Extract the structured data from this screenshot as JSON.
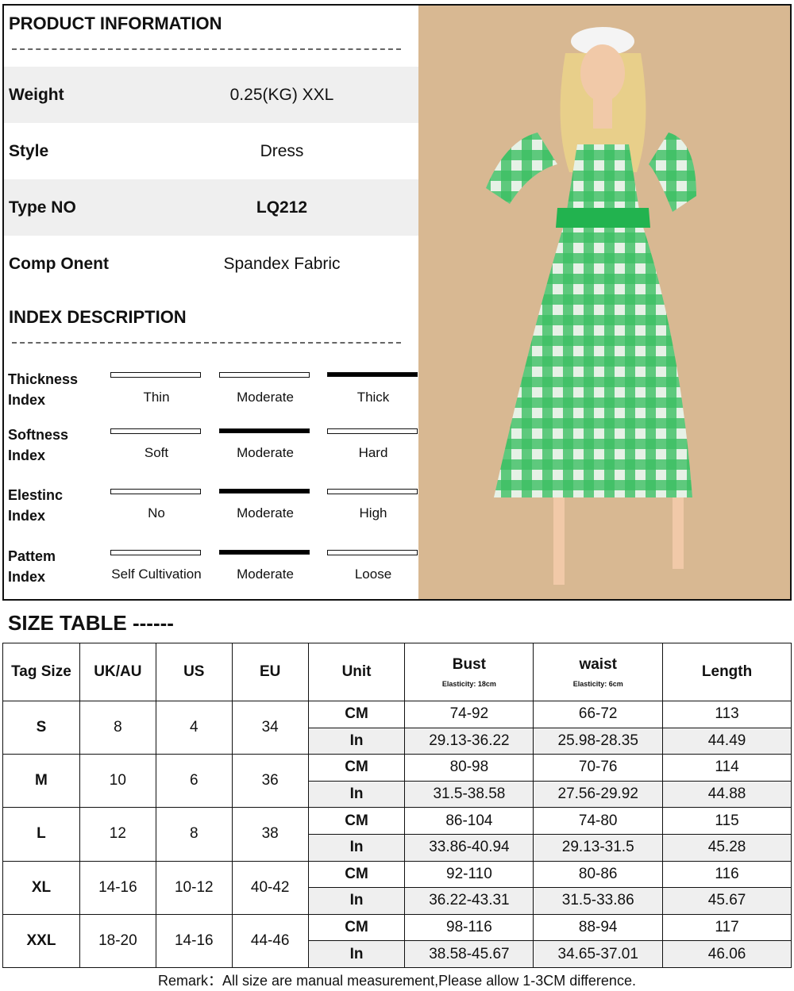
{
  "product": {
    "heading": "PRODUCT INFORMATION",
    "rows": [
      {
        "label": "Weight",
        "value": "0.25(KG)  XXL"
      },
      {
        "label": "Style",
        "value": "Dress"
      },
      {
        "label": "Type NO",
        "value": "LQ212"
      },
      {
        "label": "Comp Onent",
        "value": "Spandex Fabric"
      }
    ]
  },
  "index": {
    "heading": "INDEX DESCRIPTION",
    "rows": [
      {
        "label1": "Thickness",
        "label2": "Index",
        "options": [
          "Thin",
          "Moderate",
          "Thick"
        ],
        "selected": 2
      },
      {
        "label1": "Softness",
        "label2": "Index",
        "options": [
          "Soft",
          "Moderate",
          "Hard"
        ],
        "selected": 1
      },
      {
        "label1": "Elestinc",
        "label2": "Index",
        "options": [
          "No",
          "Moderate",
          "High"
        ],
        "selected": 1
      },
      {
        "label1": "Pattem",
        "label2": "Index",
        "options": [
          "Self Cultivation",
          "Moderate",
          "Loose"
        ],
        "selected": 1
      }
    ]
  },
  "size_table": {
    "title": "SIZE TABLE ------",
    "headers": [
      "Tag Size",
      "UK/AU",
      "US",
      "EU",
      "Unit",
      "Bust",
      "waist",
      "Length"
    ],
    "bust_note": "Elasticity: 18cm",
    "waist_note": "Elasticity: 6cm",
    "units": [
      "CM",
      "In"
    ],
    "rows": [
      {
        "tag": "S",
        "uk": "8",
        "us": "4",
        "eu": "34",
        "cm": [
          "74-92",
          "66-72",
          "113"
        ],
        "in": [
          "29.13-36.22",
          "25.98-28.35",
          "44.49"
        ]
      },
      {
        "tag": "M",
        "uk": "10",
        "us": "6",
        "eu": "36",
        "cm": [
          "80-98",
          "70-76",
          "114"
        ],
        "in": [
          "31.5-38.58",
          "27.56-29.92",
          "44.88"
        ]
      },
      {
        "tag": "L",
        "uk": "12",
        "us": "8",
        "eu": "38",
        "cm": [
          "86-104",
          "74-80",
          "115"
        ],
        "in": [
          "33.86-40.94",
          "29.13-31.5",
          "45.28"
        ]
      },
      {
        "tag": "XL",
        "uk": "14-16",
        "us": "10-12",
        "eu": "40-42",
        "cm": [
          "92-110",
          "80-86",
          "116"
        ],
        "in": [
          "36.22-43.31",
          "31.5-33.86",
          "45.67"
        ]
      },
      {
        "tag": "XXL",
        "uk": "18-20",
        "us": "14-16",
        "eu": "44-46",
        "cm": [
          "98-116",
          "88-94",
          "117"
        ],
        "in": [
          "38.58-45.67",
          "34.65-37.01",
          "46.06"
        ]
      }
    ]
  },
  "remark": "Remark：All size are manual measurement,Please allow 1-3CM difference.",
  "colors": {
    "dress_green": "#22b34f",
    "background_tan": "#d8b892"
  }
}
